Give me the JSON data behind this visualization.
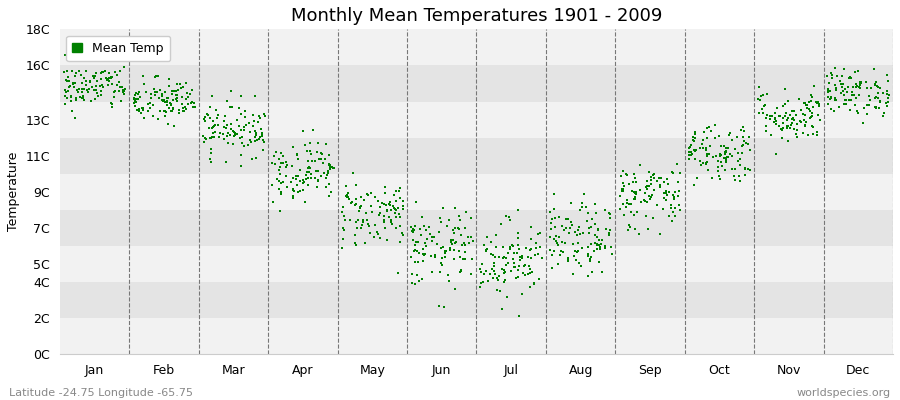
{
  "title": "Monthly Mean Temperatures 1901 - 2009",
  "ylabel": "Temperature",
  "xlabel_bottom_left": "Latitude -24.75 Longitude -65.75",
  "xlabel_bottom_right": "worldspecies.org",
  "legend_label": "Mean Temp",
  "dot_color": "#008000",
  "background_color": "#ffffff",
  "plot_bg_light": "#f2f2f2",
  "plot_bg_dark": "#e4e4e4",
  "ytick_values": [
    0,
    2,
    4,
    5,
    7,
    9,
    11,
    13,
    16,
    18
  ],
  "ytick_labels": [
    "0C",
    "2C",
    "4C",
    "5C",
    "7C",
    "9C",
    "11C",
    "13C",
    "16C",
    "18C"
  ],
  "ylim": [
    0,
    18
  ],
  "months": [
    "Jan",
    "Feb",
    "Mar",
    "Apr",
    "May",
    "Jun",
    "Jul",
    "Aug",
    "Sep",
    "Oct",
    "Nov",
    "Dec"
  ],
  "month_means": [
    14.8,
    14.0,
    12.5,
    10.2,
    7.8,
    5.8,
    5.3,
    6.3,
    8.8,
    11.2,
    13.2,
    14.5
  ],
  "month_stds": [
    0.65,
    0.65,
    0.75,
    0.85,
    0.95,
    1.1,
    1.1,
    1.0,
    0.95,
    0.85,
    0.75,
    0.65
  ],
  "n_years": 109,
  "seed": 42,
  "dot_size": 4,
  "dot_marker": "s",
  "figsize": [
    9.0,
    4.0
  ],
  "dpi": 100
}
